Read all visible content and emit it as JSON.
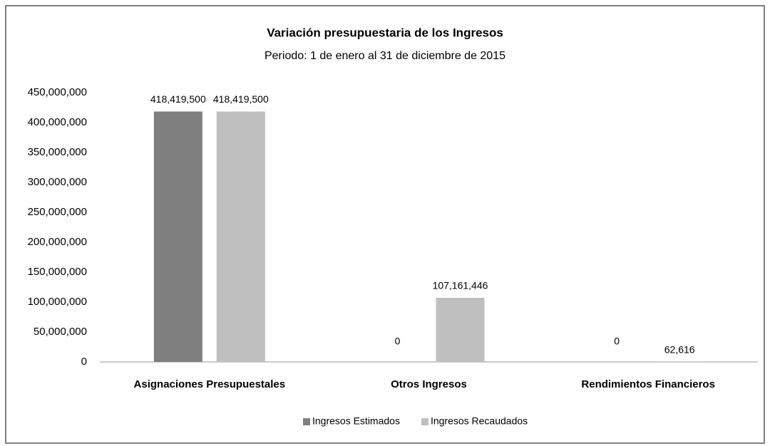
{
  "chart_data": {
    "type": "bar",
    "title": "Variación presupuestaria de los Ingresos",
    "subtitle": "Periodo:  1 de enero al 31 de diciembre de 2015",
    "categories": [
      "Asignaciones Presupuestales",
      "Otros Ingresos",
      "Rendimientos Financieros"
    ],
    "series": [
      {
        "name": "Ingresos Estimados",
        "color": "#7f7f7f",
        "values": [
          418419500,
          0,
          0
        ],
        "value_labels": [
          "418,419,500",
          "0",
          "0"
        ]
      },
      {
        "name": "Ingresos Recaudados",
        "color": "#bfbfbf",
        "values": [
          418419500,
          107161446,
          62616
        ],
        "value_labels": [
          "418,419,500",
          "107,161,446",
          "62,616"
        ]
      }
    ],
    "ylim": [
      0,
      450000000
    ],
    "yticks": [
      0,
      {
        "value": 50000000,
        "label": "50,000,000"
      },
      {
        "value": 100000000,
        "label": "100,000,000"
      },
      {
        "value": 150000000,
        "label": "150,000,000"
      },
      {
        "value": 200000000,
        "label": "200,000,000"
      },
      {
        "value": 250000000,
        "label": "250,000,000"
      },
      {
        "value": 300000000,
        "label": "300,000,000"
      },
      {
        "value": 350000000,
        "label": "350,000,000"
      },
      {
        "value": 400000000,
        "label": "400,000,000"
      },
      {
        "value": 450000000,
        "label": "450,000,000"
      }
    ],
    "grid": false,
    "legend": "bottom"
  }
}
